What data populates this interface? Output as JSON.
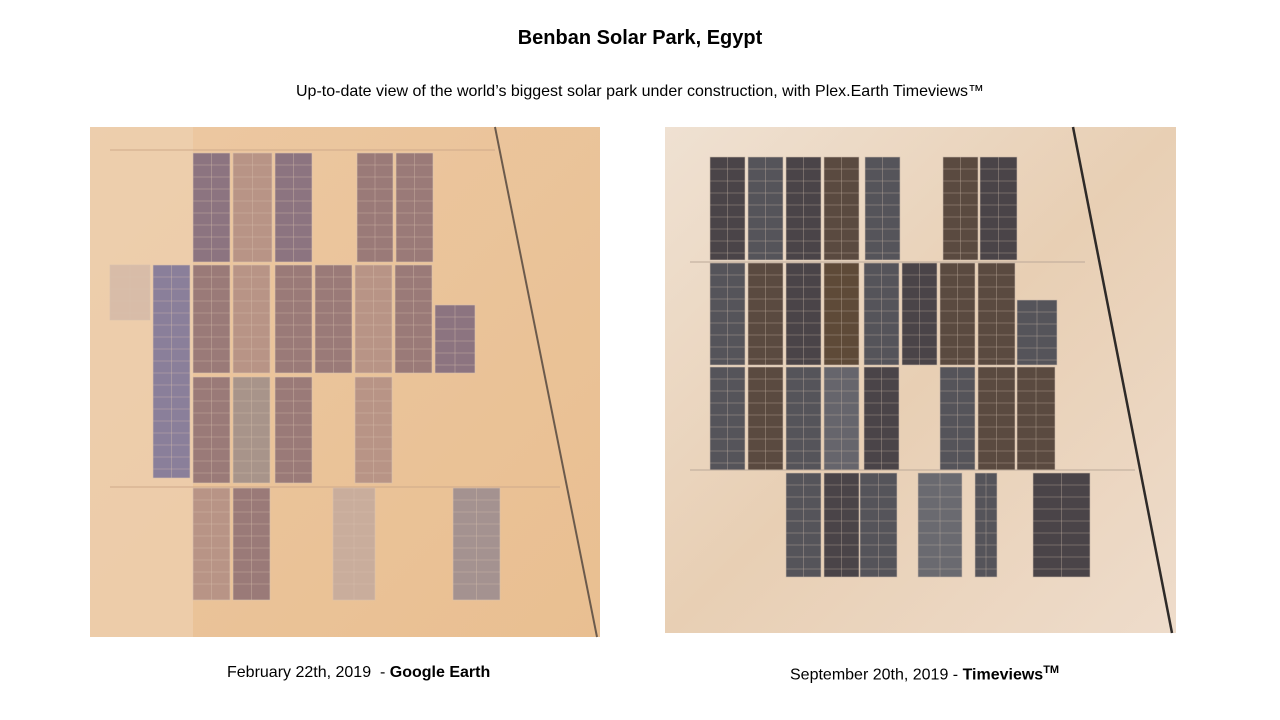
{
  "title": "Benban Solar Park, Egypt",
  "subtitle": "Up-to-date view of the world’s biggest solar park under construction, with Plex.Earth Timeviews™",
  "panels": [
    {
      "date": "February 22th, 2019  -",
      "source": "Google Earth"
    },
    {
      "date": "September 20th, 2019 -",
      "source": "Timeviews",
      "mark": "TM"
    }
  ]
}
